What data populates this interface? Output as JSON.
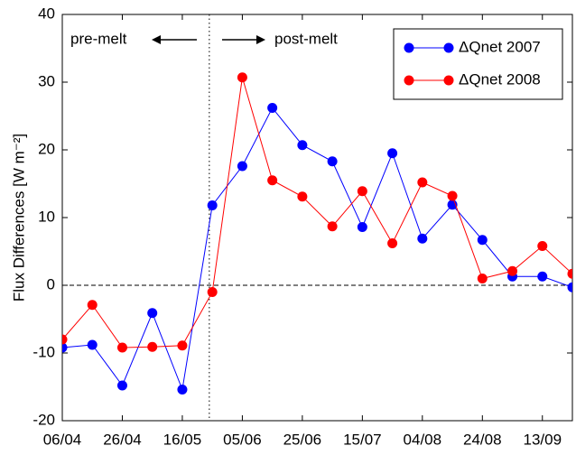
{
  "chart_data": {
    "type": "line",
    "ylabel": "Flux Differences [W m⁻²]",
    "x": [
      0,
      10,
      20,
      30,
      40,
      50,
      60,
      70,
      80,
      90,
      100,
      110,
      120,
      130,
      140,
      150,
      160,
      170
    ],
    "series": [
      {
        "name": "ΔQnet 2007",
        "color": "#0000ff",
        "values": [
          -9.2,
          -8.8,
          -14.8,
          -4.1,
          -15.4,
          11.8,
          17.6,
          26.2,
          20.7,
          18.3,
          8.6,
          19.5,
          6.9,
          11.9,
          6.7,
          1.3,
          1.3,
          -0.3
        ]
      },
      {
        "name": "ΔQnet 2008",
        "color": "#ff0000",
        "values": [
          -8.0,
          -2.9,
          -9.2,
          -9.1,
          -8.9,
          -1.0,
          30.7,
          15.5,
          13.1,
          8.7,
          13.9,
          6.2,
          15.2,
          13.2,
          1.0,
          2.1,
          5.8,
          1.7
        ]
      }
    ],
    "xlim": [
      0,
      170
    ],
    "xticks": [
      {
        "value": 0,
        "label": "06/04"
      },
      {
        "value": 20,
        "label": "26/04"
      },
      {
        "value": 40,
        "label": "16/05"
      },
      {
        "value": 60,
        "label": "05/06"
      },
      {
        "value": 80,
        "label": "25/06"
      },
      {
        "value": 100,
        "label": "15/07"
      },
      {
        "value": 120,
        "label": "04/08"
      },
      {
        "value": 140,
        "label": "24/08"
      },
      {
        "value": 160,
        "label": "13/09"
      }
    ],
    "ylim": [
      -20,
      40
    ],
    "yticks": [
      -20,
      -10,
      0,
      10,
      20,
      30,
      40
    ],
    "hline": 0,
    "vline": 49,
    "annotations": [
      "pre-melt",
      "post-melt"
    ],
    "legend": "upper right"
  }
}
